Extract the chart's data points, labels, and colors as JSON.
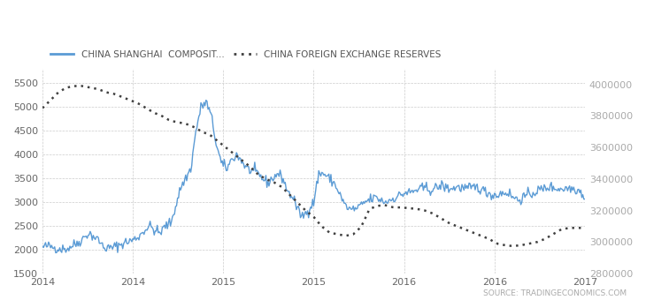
{
  "legend_stock": "CHINA SHANGHAI  COMPOSIT...",
  "legend_fx": "CHINA FOREIGN EXCHANGE RESERVES",
  "source": "SOURCE: TRADINGECONOMICS.COM",
  "stock_color": "#5b9bd5",
  "fx_color": "#404040",
  "background_color": "#ffffff",
  "grid_color": "#cccccc",
  "ylim_stock": [
    1500,
    5800
  ],
  "ylim_fx": [
    2800000,
    4100000
  ],
  "yticks_stock": [
    1500,
    2000,
    2500,
    3000,
    3500,
    4000,
    4500,
    5000,
    5500
  ],
  "yticks_fx": [
    2800000,
    3000000,
    3200000,
    3400000,
    3600000,
    3800000,
    4000000
  ],
  "xtick_labels": [
    "2014",
    "2014",
    "2015",
    "2015",
    "2016",
    "2016",
    "2017"
  ],
  "stock_monthly": [
    2050,
    2080,
    2060,
    2030,
    2020,
    2030,
    2100,
    2150,
    2250,
    2350,
    2280,
    2200,
    2050,
    2030,
    2060,
    2100,
    2150,
    2180,
    2220,
    2300,
    2420,
    2500,
    2400,
    2350,
    2500,
    2550,
    2900,
    3300,
    3500,
    3700,
    4500,
    5000,
    5100,
    4800,
    4200,
    3800,
    3700,
    3900,
    4000,
    3850,
    3700,
    3650,
    3600,
    3500,
    3400,
    3500,
    3600,
    3500,
    3200,
    3100,
    2800,
    2700,
    2850,
    3000,
    3600,
    3600,
    3500,
    3400,
    3200,
    2950,
    2850,
    2850,
    2900,
    3000,
    3050,
    3100,
    3050,
    3000,
    3050,
    3100,
    3150,
    3200,
    3200,
    3250,
    3280,
    3300,
    3250,
    3300,
    3350,
    3300,
    3280,
    3320,
    3300,
    3280,
    3300,
    3320,
    3250,
    3200,
    3150,
    3150,
    3200,
    3200,
    3100,
    3050,
    3100,
    3150,
    3200,
    3250,
    3280,
    3320,
    3300,
    3280,
    3280,
    3300,
    3280,
    3250,
    3100
  ],
  "fx_monthly": [
    3850000,
    3900000,
    3950000,
    3980000,
    3990000,
    3990000,
    3980000,
    3970000,
    3950000,
    3940000,
    3920000,
    3900000,
    3880000,
    3850000,
    3820000,
    3800000,
    3770000,
    3760000,
    3750000,
    3730000,
    3700000,
    3680000,
    3640000,
    3600000,
    3560000,
    3520000,
    3480000,
    3430000,
    3400000,
    3380000,
    3350000,
    3300000,
    3250000,
    3200000,
    3160000,
    3100000,
    3060000,
    3050000,
    3040000,
    3050000,
    3100000,
    3210000,
    3230000,
    3235000,
    3220000,
    3220000,
    3215000,
    3210000,
    3200000,
    3180000,
    3150000,
    3120000,
    3100000,
    3080000,
    3060000,
    3040000,
    3020000,
    2990000,
    2980000,
    2975000,
    2980000,
    2990000,
    3000000,
    3020000,
    3050000,
    3080000,
    3090000,
    3090000,
    3090000
  ]
}
